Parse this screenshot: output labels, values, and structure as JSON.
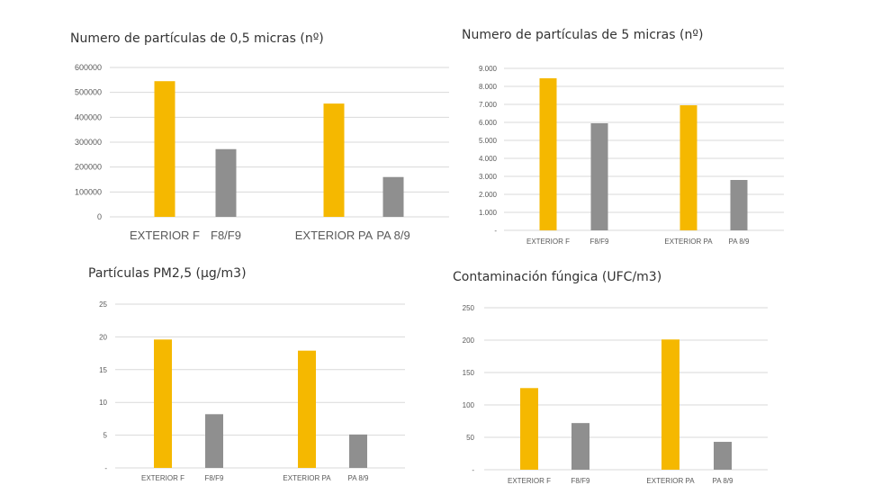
{
  "colors": {
    "exterior": "#F5B800",
    "filtered": "#8F8F8F",
    "grid": "#D9D9D9",
    "text": "#595959"
  },
  "chart_data": [
    {
      "type": "bar",
      "title": "Numero de partículas de 0,5 micras (nº)",
      "categories": [
        "EXTERIOR F",
        "F8/F9",
        "EXTERIOR PA",
        "PA 8/9"
      ],
      "values": [
        545000,
        272000,
        455000,
        160000
      ],
      "ylim": [
        0,
        600000
      ],
      "yticks": [
        0,
        100000,
        200000,
        300000,
        400000,
        500000,
        600000
      ],
      "ytick_labels": [
        "0",
        "100000",
        "200000",
        "300000",
        "400000",
        "500000",
        "600000"
      ],
      "grid": true,
      "legend": "none"
    },
    {
      "type": "bar",
      "title": "Numero de partículas de 5 micras (nº)",
      "categories": [
        "EXTERIOR F",
        "F8/F9",
        "EXTERIOR PA",
        "PA 8/9"
      ],
      "values": [
        8450,
        5950,
        6950,
        2800
      ],
      "ylim": [
        0,
        9000
      ],
      "yticks": [
        0,
        1000,
        2000,
        3000,
        4000,
        5000,
        6000,
        7000,
        8000,
        9000
      ],
      "ytick_labels": [
        "-",
        "1.000",
        "2.000",
        "3.000",
        "4.000",
        "5.000",
        "6.000",
        "7.000",
        "8.000",
        "9.000"
      ],
      "grid": true,
      "legend": "none"
    },
    {
      "type": "bar",
      "title": "Partículas PM2,5 (µg/m3)",
      "categories": [
        "EXTERIOR F",
        "F8/F9",
        "EXTERIOR PA",
        "PA 8/9"
      ],
      "values": [
        19.6,
        8.2,
        17.9,
        5.1
      ],
      "ylim": [
        0,
        25
      ],
      "yticks": [
        0,
        5,
        10,
        15,
        20,
        25
      ],
      "ytick_labels": [
        "-",
        "5",
        "10",
        "15",
        "20",
        "25"
      ],
      "grid": true,
      "legend": "none"
    },
    {
      "type": "bar",
      "title": "Contaminación fúngica (UFC/m3)",
      "categories": [
        "EXTERIOR F",
        "F8/F9",
        "EXTERIOR PA",
        "PA 8/9"
      ],
      "values": [
        126,
        72,
        201,
        43
      ],
      "ylim": [
        0,
        250
      ],
      "yticks": [
        0,
        50,
        100,
        150,
        200,
        250
      ],
      "ytick_labels": [
        "-",
        "50",
        "100",
        "150",
        "200",
        "250"
      ],
      "grid": true,
      "legend": "none"
    }
  ]
}
